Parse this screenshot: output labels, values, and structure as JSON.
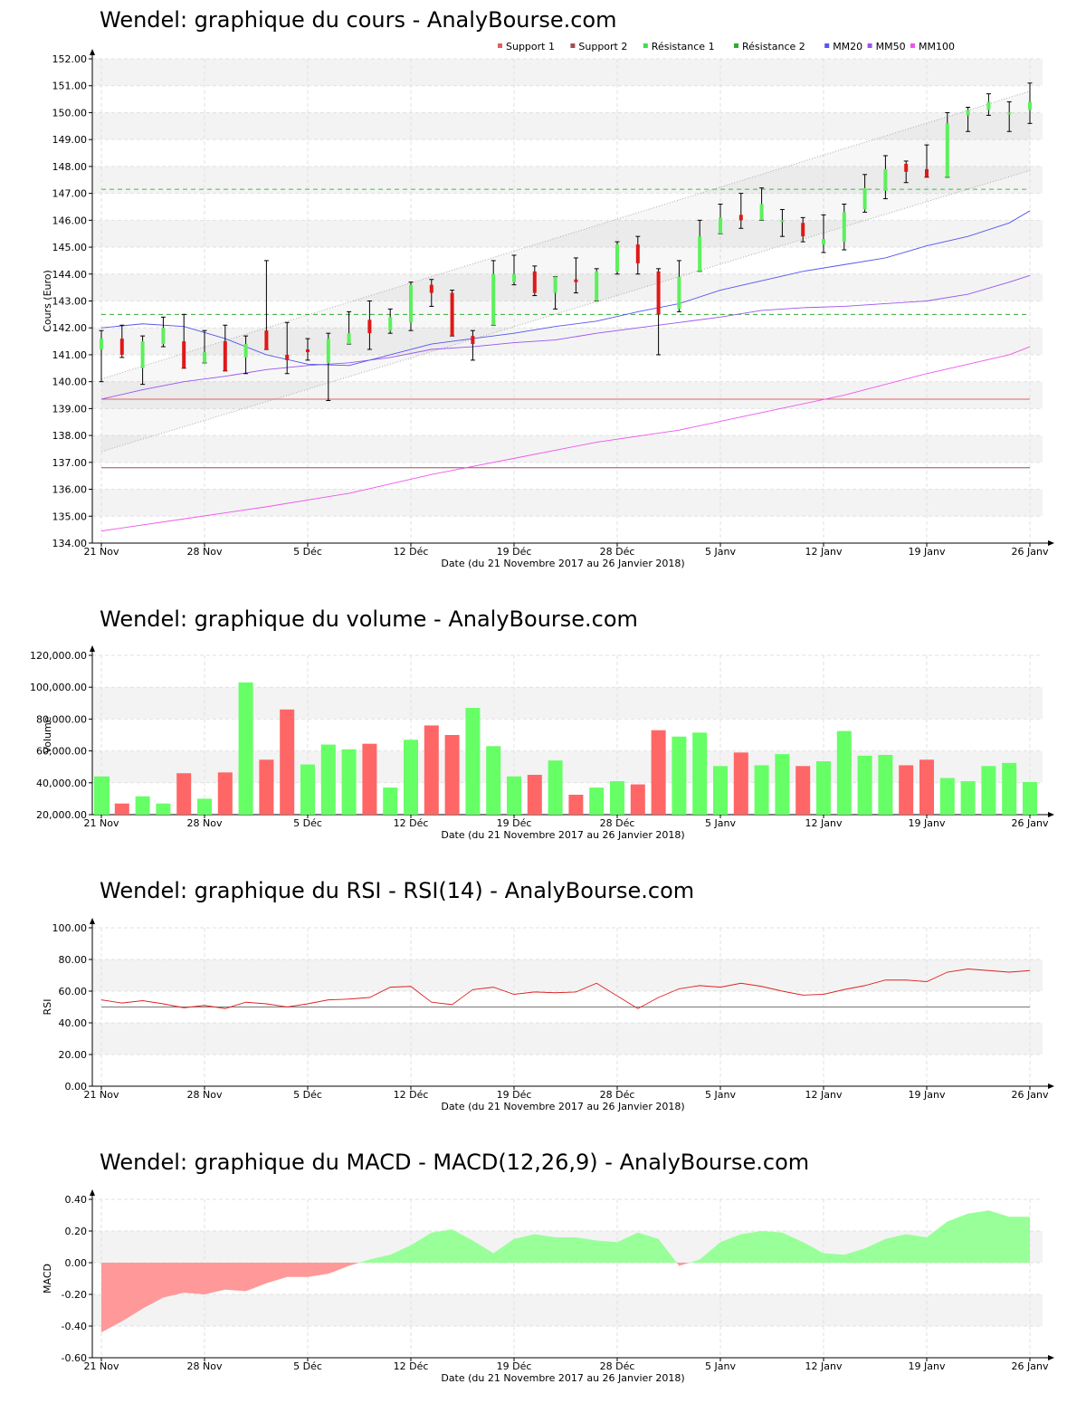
{
  "x_ticks": [
    "21 Nov",
    "28 Nov",
    "5 Déc",
    "12 Déc",
    "19 Déc",
    "28 Déc",
    "5 Janv",
    "12 Janv",
    "19 Janv",
    "26 Janv"
  ],
  "x_label": "Date (du 21 Novembre 2017 au 26 Janvier 2018)",
  "chart_data": [
    {
      "type": "candlestick",
      "title": "Wendel: graphique du cours - AnalyBourse.com",
      "ylabel": "Cours (Euro)",
      "xlabel": "Date (du 21 Novembre 2017 au 26 Janvier 2018)",
      "ylim": [
        134,
        152
      ],
      "yticks": [
        "134.00",
        "135.00",
        "136.00",
        "137.00",
        "138.00",
        "139.00",
        "140.00",
        "141.00",
        "142.00",
        "143.00",
        "144.00",
        "145.00",
        "146.00",
        "147.00",
        "148.00",
        "149.00",
        "150.00",
        "151.00",
        "152.00"
      ],
      "legend": [
        "Support 1",
        "Support 2",
        "Résistance 1",
        "Résistance 2",
        "MM20",
        "MM50",
        "MM100"
      ],
      "legend_colors": [
        "#e06060",
        "#a05050",
        "#44dd44",
        "#33aa33",
        "#5555ee",
        "#9955ee",
        "#ee55ee"
      ],
      "up_color": "#5cf05c",
      "down_color": "#e01818",
      "candles": [
        {
          "o": 141.2,
          "h": 141.9,
          "l": 140.0,
          "c": 141.6
        },
        {
          "o": 141.6,
          "h": 142.1,
          "l": 140.9,
          "c": 141.0
        },
        {
          "o": 140.5,
          "h": 141.7,
          "l": 139.9,
          "c": 141.5
        },
        {
          "o": 141.4,
          "h": 142.4,
          "l": 141.3,
          "c": 142.0
        },
        {
          "o": 141.5,
          "h": 142.5,
          "l": 140.5,
          "c": 140.5
        },
        {
          "o": 140.7,
          "h": 141.9,
          "l": 140.7,
          "c": 141.1
        },
        {
          "o": 141.5,
          "h": 142.1,
          "l": 140.4,
          "c": 140.4
        },
        {
          "o": 140.9,
          "h": 141.7,
          "l": 140.3,
          "c": 141.4
        },
        {
          "o": 141.9,
          "h": 144.5,
          "l": 141.2,
          "c": 141.2
        },
        {
          "o": 141.0,
          "h": 142.2,
          "l": 140.3,
          "c": 140.8
        },
        {
          "o": 141.2,
          "h": 141.6,
          "l": 140.8,
          "c": 141.1
        },
        {
          "o": 140.7,
          "h": 141.8,
          "l": 139.3,
          "c": 141.6
        },
        {
          "o": 141.4,
          "h": 142.6,
          "l": 141.4,
          "c": 141.8
        },
        {
          "o": 142.3,
          "h": 143.0,
          "l": 141.2,
          "c": 141.8
        },
        {
          "o": 141.9,
          "h": 142.7,
          "l": 141.8,
          "c": 142.4
        },
        {
          "o": 142.2,
          "h": 143.7,
          "l": 141.9,
          "c": 143.6
        },
        {
          "o": 143.6,
          "h": 143.8,
          "l": 142.8,
          "c": 143.3
        },
        {
          "o": 143.3,
          "h": 143.4,
          "l": 141.7,
          "c": 141.7
        },
        {
          "o": 141.7,
          "h": 141.9,
          "l": 140.8,
          "c": 141.4
        },
        {
          "o": 142.1,
          "h": 144.5,
          "l": 142.1,
          "c": 144.0
        },
        {
          "o": 143.7,
          "h": 144.7,
          "l": 143.6,
          "c": 144.0
        },
        {
          "o": 144.1,
          "h": 144.3,
          "l": 143.2,
          "c": 143.3
        },
        {
          "o": 143.3,
          "h": 143.9,
          "l": 142.7,
          "c": 143.9
        },
        {
          "o": 143.8,
          "h": 144.6,
          "l": 143.3,
          "c": 143.7
        },
        {
          "o": 143.0,
          "h": 144.2,
          "l": 143.0,
          "c": 144.1
        },
        {
          "o": 144.1,
          "h": 145.2,
          "l": 144.0,
          "c": 145.1
        },
        {
          "o": 145.1,
          "h": 145.4,
          "l": 144.0,
          "c": 144.4
        },
        {
          "o": 144.1,
          "h": 144.2,
          "l": 141.0,
          "c": 142.5
        },
        {
          "o": 142.7,
          "h": 144.5,
          "l": 142.6,
          "c": 143.9
        },
        {
          "o": 144.1,
          "h": 146.0,
          "l": 144.1,
          "c": 145.4
        },
        {
          "o": 145.5,
          "h": 146.6,
          "l": 145.5,
          "c": 146.1
        },
        {
          "o": 146.2,
          "h": 147.0,
          "l": 145.7,
          "c": 146.0
        },
        {
          "o": 146.0,
          "h": 147.2,
          "l": 146.0,
          "c": 146.6
        },
        {
          "o": 146.0,
          "h": 146.4,
          "l": 145.4,
          "c": 146.0
        },
        {
          "o": 145.9,
          "h": 146.1,
          "l": 145.2,
          "c": 145.4
        },
        {
          "o": 145.1,
          "h": 146.2,
          "l": 144.8,
          "c": 145.3
        },
        {
          "o": 145.2,
          "h": 146.6,
          "l": 144.9,
          "c": 146.3
        },
        {
          "o": 146.4,
          "h": 147.7,
          "l": 146.3,
          "c": 147.2
        },
        {
          "o": 147.1,
          "h": 148.4,
          "l": 146.8,
          "c": 147.9
        },
        {
          "o": 148.1,
          "h": 148.2,
          "l": 147.4,
          "c": 147.8
        },
        {
          "o": 147.9,
          "h": 148.8,
          "l": 147.6,
          "c": 147.6
        },
        {
          "o": 147.6,
          "h": 150.0,
          "l": 147.6,
          "c": 149.6
        },
        {
          "o": 149.9,
          "h": 150.2,
          "l": 149.3,
          "c": 150.1
        },
        {
          "o": 150.1,
          "h": 150.7,
          "l": 149.9,
          "c": 150.4
        },
        {
          "o": 150.0,
          "h": 150.4,
          "l": 149.3,
          "c": 150.0
        },
        {
          "o": 150.1,
          "h": 151.1,
          "l": 149.6,
          "c": 150.4
        }
      ],
      "support1": 139.35,
      "support2": 136.8,
      "resistance1": 147.15,
      "resistance2": 142.5,
      "channel_upper": {
        "x": [
          0,
          45
        ],
        "y": [
          140.1,
          150.8
        ]
      },
      "channel_lower": {
        "x": [
          0,
          45
        ],
        "y": [
          137.4,
          147.85
        ]
      },
      "mm20": {
        "x": [
          0,
          2,
          4,
          6,
          8,
          10,
          12,
          14,
          16,
          18,
          20,
          22,
          24,
          26,
          28,
          30,
          32,
          34,
          36,
          38,
          40,
          42,
          44,
          45
        ],
        "y": [
          142.0,
          142.15,
          142.05,
          141.6,
          141.0,
          140.65,
          140.6,
          141.0,
          141.4,
          141.6,
          141.8,
          142.05,
          142.25,
          142.6,
          142.9,
          143.4,
          143.75,
          144.1,
          144.35,
          144.6,
          145.05,
          145.4,
          145.9,
          146.35
        ]
      },
      "mm50": {
        "x": [
          0,
          2,
          4,
          6,
          8,
          10,
          12,
          14,
          16,
          18,
          20,
          22,
          24,
          26,
          28,
          30,
          32,
          34,
          36,
          38,
          40,
          42,
          44,
          45
        ],
        "y": [
          139.35,
          139.7,
          140.0,
          140.2,
          140.45,
          140.6,
          140.7,
          140.9,
          141.2,
          141.3,
          141.45,
          141.55,
          141.8,
          142.0,
          142.2,
          142.4,
          142.65,
          142.75,
          142.8,
          142.9,
          143.0,
          143.25,
          143.7,
          143.95
        ]
      },
      "mm100": {
        "x": [
          0,
          4,
          8,
          12,
          16,
          20,
          24,
          28,
          32,
          36,
          40,
          44,
          45
        ],
        "y": [
          134.45,
          134.9,
          135.35,
          135.85,
          136.55,
          137.15,
          137.75,
          138.2,
          138.85,
          139.5,
          140.3,
          141.0,
          141.3
        ]
      }
    },
    {
      "type": "bar",
      "title": "Wendel: graphique du volume - AnalyBourse.com",
      "ylabel": "Volume",
      "xlabel": "Date (du 21 Novembre 2017 au 26 Janvier 2018)",
      "ylim": [
        20000,
        120000
      ],
      "yticks": [
        "20,000.00",
        "40,000.00",
        "60,000.00",
        "80,000.00",
        "100,000.00",
        "120,000.00"
      ],
      "values": [
        44000,
        27000,
        31500,
        27000,
        46000,
        30000,
        46500,
        103000,
        54500,
        86000,
        51500,
        64000,
        61000,
        64500,
        37000,
        67000,
        76000,
        70000,
        87000,
        63000,
        44000,
        45000,
        54000,
        32500,
        37000,
        41000,
        39000,
        73000,
        69000,
        71500,
        50500,
        59000,
        51000,
        58000,
        50500,
        53500,
        72500,
        57000,
        57500,
        51000,
        54500,
        43000,
        41000,
        50500,
        52500,
        40500
      ],
      "colors": [
        "g",
        "r",
        "g",
        "g",
        "r",
        "g",
        "r",
        "g",
        "r",
        "r",
        "g",
        "g",
        "g",
        "r",
        "g",
        "g",
        "r",
        "r",
        "g",
        "g",
        "g",
        "r",
        "g",
        "r",
        "g",
        "g",
        "r",
        "r",
        "g",
        "g",
        "g",
        "r",
        "g",
        "g",
        "r",
        "g",
        "g",
        "g",
        "g",
        "r",
        "r",
        "g",
        "g",
        "g",
        "g",
        "g"
      ]
    },
    {
      "type": "line",
      "title": "Wendel: graphique du RSI - RSI(14) - AnalyBourse.com",
      "ylabel": "RSI",
      "xlabel": "Date (du 21 Novembre 2017 au 26 Janvier 2018)",
      "ylim": [
        0,
        100
      ],
      "yticks": [
        "0.00",
        "20.00",
        "40.00",
        "60.00",
        "80.00",
        "100.00"
      ],
      "reference": 50,
      "series": [
        {
          "values": [
            54.5,
            52.5,
            54,
            52,
            49.5,
            51,
            49,
            53,
            52,
            50,
            52,
            54.5,
            55,
            56,
            62.5,
            63,
            53,
            51.5,
            61,
            62.5,
            58,
            59.5,
            59,
            59.5,
            65,
            57,
            49,
            56,
            61.5,
            63.5,
            62.5,
            65,
            63,
            60,
            57.5,
            58,
            61,
            63.5,
            67,
            67,
            66,
            72,
            74,
            73,
            72,
            73
          ]
        }
      ]
    },
    {
      "type": "area",
      "title": "Wendel: graphique du MACD - MACD(12,26,9) - AnalyBourse.com",
      "ylabel": "MACD",
      "xlabel": "Date (du 21 Novembre 2017 au 26 Janvier 2018)",
      "ylim": [
        -0.6,
        0.4
      ],
      "yticks": [
        "-0.60",
        "-0.40",
        "-0.20",
        "0.00",
        "0.20",
        "0.40"
      ],
      "pos_color": "#99ff99",
      "neg_color": "#ff9999",
      "values": [
        -0.44,
        -0.37,
        -0.29,
        -0.22,
        -0.19,
        -0.2,
        -0.17,
        -0.18,
        -0.13,
        -0.09,
        -0.09,
        -0.07,
        -0.02,
        0.02,
        0.05,
        0.11,
        0.19,
        0.21,
        0.14,
        0.06,
        0.15,
        0.18,
        0.16,
        0.16,
        0.14,
        0.13,
        0.19,
        0.15,
        -0.02,
        0.02,
        0.13,
        0.18,
        0.2,
        0.19,
        0.13,
        0.06,
        0.05,
        0.09,
        0.15,
        0.18,
        0.16,
        0.26,
        0.31,
        0.33,
        0.29,
        0.29
      ]
    }
  ]
}
